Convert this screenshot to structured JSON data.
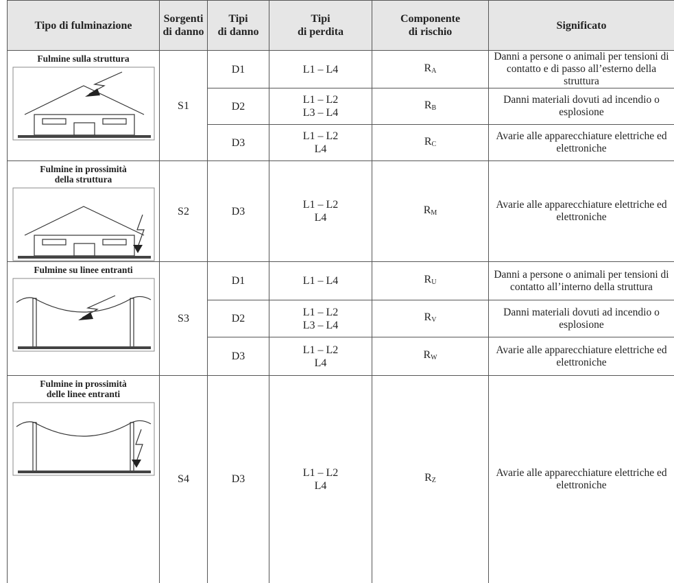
{
  "header": {
    "columns": [
      [
        "Tipo di fulminazione"
      ],
      [
        "Sorgenti",
        "di danno"
      ],
      [
        "Tipi",
        "di danno"
      ],
      [
        "Tipi",
        "di perdita"
      ],
      [
        "Componente",
        "di rischio"
      ],
      [
        "Significato"
      ]
    ]
  },
  "groups": [
    {
      "label": [
        "Fulmine sulla struttura"
      ],
      "source": "S1",
      "rows": [
        {
          "damage": "D1",
          "loss": [
            "L1 – L4"
          ],
          "component": [
            "R",
            "A"
          ],
          "meaning": "Danni a persone o animali per tensioni di contatto e di passo all’esterno della struttura"
        },
        {
          "damage": "D2",
          "loss": [
            "L1 – L2",
            "L3 – L4"
          ],
          "component": [
            "R",
            "B"
          ],
          "meaning": "Danni materiali dovuti ad incendio o esplosione"
        },
        {
          "damage": "D3",
          "loss": [
            "L1 – L2",
            "L4"
          ],
          "component": [
            "R",
            "C"
          ],
          "meaning": "Avarie alle apparecchiature elettriche ed elettroniche"
        }
      ]
    },
    {
      "label": [
        "Fulmine in prossimità",
        "della struttura"
      ],
      "source": "S2",
      "rows": [
        {
          "damage": "D3",
          "loss": [
            "L1 – L2",
            "L4"
          ],
          "component": [
            "R",
            "M"
          ],
          "meaning": "Avarie alle apparecchiature elettriche ed elettroniche"
        }
      ]
    },
    {
      "label": [
        "Fulmine su linee entranti"
      ],
      "source": "S3",
      "rows": [
        {
          "damage": "D1",
          "loss": [
            "L1 – L4"
          ],
          "component": [
            "R",
            "U"
          ],
          "meaning": "Danni a persone o animali per tensioni di contatto all’interno della struttura"
        },
        {
          "damage": "D2",
          "loss": [
            "L1 – L2",
            "L3 – L4"
          ],
          "component": [
            "R",
            "V"
          ],
          "meaning": "Danni materiali dovuti ad incendio o esplosione"
        },
        {
          "damage": "D3",
          "loss": [
            "L1 – L2",
            "L4"
          ],
          "component": [
            "R",
            "W"
          ],
          "meaning": "Avarie alle apparecchiature elettriche ed elettroniche"
        }
      ]
    },
    {
      "label": [
        "Fulmine in prossimità",
        "delle linee entranti"
      ],
      "source": "S4",
      "rows": [
        {
          "damage": "D3",
          "loss": [
            "L1 – L2",
            "L4"
          ],
          "component": [
            "R",
            "Z"
          ],
          "meaning": "Avarie alle apparecchiature elettriche ed elettroniche"
        }
      ]
    }
  ]
}
